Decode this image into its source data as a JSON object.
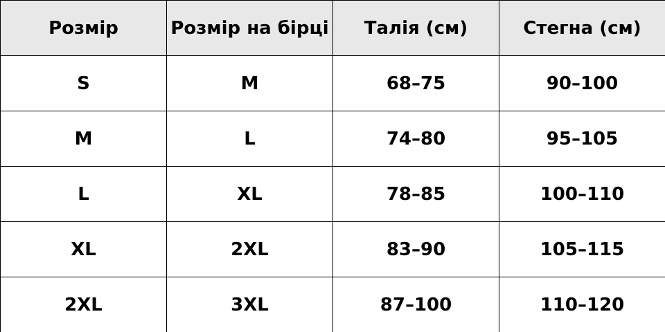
{
  "table": {
    "header": [
      "Розмір",
      "Розмір на бірці",
      "Талія (см)",
      "Стегна (см)"
    ],
    "rows": [
      [
        "S",
        "M",
        "68–75",
        "90–100"
      ],
      [
        "M",
        "L",
        "74–80",
        "95–105"
      ],
      [
        "L",
        "XL",
        "78–85",
        "100–110"
      ],
      [
        "XL",
        "2XL",
        "83–90",
        "105–115"
      ],
      [
        "2XL",
        "3XL",
        "87–100",
        "110–120"
      ]
    ]
  }
}
